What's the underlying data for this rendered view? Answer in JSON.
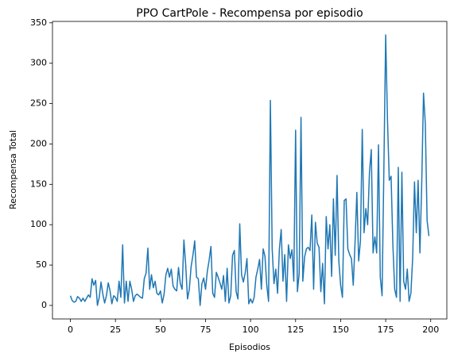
{
  "chart_data": {
    "type": "line",
    "title": "PPO CartPole - Recompensa por episodio",
    "xlabel": "Episodios",
    "ylabel": "Recompensa Total",
    "color": "#1f77b4",
    "x": [
      0,
      1,
      2,
      3,
      4,
      5,
      6,
      7,
      8,
      9,
      10,
      11,
      12,
      13,
      14,
      15,
      16,
      17,
      18,
      19,
      20,
      21,
      22,
      23,
      24,
      25,
      26,
      27,
      28,
      29,
      30,
      31,
      32,
      33,
      34,
      35,
      36,
      37,
      38,
      39,
      40,
      41,
      42,
      43,
      44,
      45,
      46,
      47,
      48,
      49,
      50,
      51,
      52,
      53,
      54,
      55,
      56,
      57,
      58,
      59,
      60,
      61,
      62,
      63,
      64,
      65,
      66,
      67,
      68,
      69,
      70,
      71,
      72,
      73,
      74,
      75,
      76,
      77,
      78,
      79,
      80,
      81,
      82,
      83,
      84,
      85,
      86,
      87,
      88,
      89,
      90,
      91,
      92,
      93,
      94,
      95,
      96,
      97,
      98,
      99,
      100,
      101,
      102,
      103,
      104,
      105,
      106,
      107,
      108,
      109,
      110,
      111,
      112,
      113,
      114,
      115,
      116,
      117,
      118,
      119,
      120,
      121,
      122,
      123,
      124,
      125,
      126,
      127,
      128,
      129,
      130,
      131,
      132,
      133,
      134,
      135,
      136,
      137,
      138,
      139,
      140,
      141,
      142,
      143,
      144,
      145,
      146,
      147,
      148,
      149,
      150,
      151,
      152,
      153,
      154,
      155,
      156,
      157,
      158,
      159,
      160,
      161,
      162,
      163,
      164,
      165,
      166,
      167,
      168,
      169,
      170,
      171,
      172,
      173,
      174,
      175,
      176,
      177,
      178,
      179,
      180,
      181,
      182,
      183,
      184,
      185,
      186,
      187,
      188,
      189,
      190,
      191,
      192,
      193,
      194,
      195,
      196,
      197,
      198,
      199
    ],
    "values": [
      12,
      6,
      4,
      5,
      11,
      9,
      5,
      9,
      5,
      9,
      13,
      10,
      33,
      25,
      31,
      0,
      10,
      29,
      14,
      3,
      12,
      28,
      18,
      2,
      12,
      10,
      5,
      30,
      10,
      75,
      3,
      30,
      5,
      30,
      20,
      5,
      12,
      14,
      12,
      10,
      9,
      33,
      40,
      71,
      20,
      38,
      22,
      30,
      15,
      13,
      18,
      3,
      14,
      38,
      46,
      35,
      45,
      24,
      20,
      18,
      47,
      27,
      20,
      81,
      50,
      8,
      20,
      48,
      62,
      80,
      35,
      33,
      0,
      27,
      34,
      20,
      42,
      56,
      73,
      15,
      10,
      41,
      35,
      28,
      20,
      37,
      5,
      46,
      3,
      12,
      62,
      68,
      17,
      8,
      101,
      38,
      29,
      40,
      58,
      2,
      8,
      3,
      10,
      35,
      45,
      57,
      20,
      70,
      61,
      25,
      5,
      254,
      70,
      27,
      45,
      15,
      70,
      94,
      30,
      63,
      5,
      75,
      58,
      69,
      30,
      217,
      17,
      40,
      233,
      30,
      60,
      70,
      72,
      68,
      112,
      20,
      103,
      77,
      72,
      17,
      52,
      2,
      110,
      70,
      100,
      36,
      132,
      62,
      161,
      55,
      25,
      10,
      130,
      132,
      70,
      63,
      58,
      25,
      78,
      140,
      55,
      80,
      218,
      90,
      120,
      100,
      165,
      193,
      65,
      85,
      65,
      199,
      35,
      12,
      170,
      335,
      230,
      155,
      160,
      75,
      20,
      10,
      171,
      5,
      165,
      30,
      20,
      45,
      5,
      15,
      60,
      153,
      90,
      155,
      65,
      150,
      263,
      225,
      105,
      86
    ],
    "xlim": [
      -9.95,
      208.95
    ],
    "ylim": [
      -16.75,
      351.75
    ],
    "xticks": [
      0,
      25,
      50,
      75,
      100,
      125,
      150,
      175,
      200
    ],
    "yticks": [
      0,
      50,
      100,
      150,
      200,
      250,
      300,
      350
    ]
  }
}
